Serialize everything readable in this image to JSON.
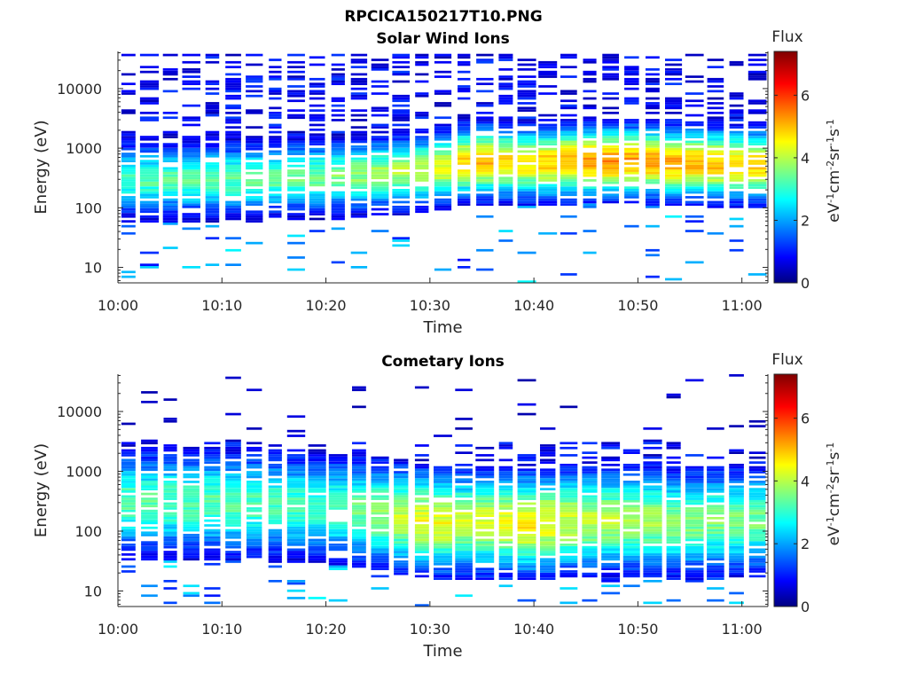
{
  "figure": {
    "title": "RPCICA150217T10.PNG",
    "colormap": "jet",
    "background": "#ffffff"
  },
  "chart_data": [
    {
      "type": "heatmap",
      "title": "Solar Wind Ions",
      "xlabel": "Time",
      "ylabel": "Energy (eV)",
      "x_ticks": [
        "10:00",
        "10:10",
        "10:20",
        "10:30",
        "10:40",
        "10:50",
        "11:00"
      ],
      "x_range_minutes": [
        0,
        62.5
      ],
      "y_scale": "log",
      "y_ticks": [
        "10",
        "100",
        "1000",
        "10000"
      ],
      "y_range": [
        5.5,
        42000
      ],
      "colorbar": {
        "label": "Flux",
        "unit": "eV-1cm-2sr-1s-1",
        "ticks": [
          "0",
          "2",
          "4",
          "6"
        ],
        "range": [
          0,
          7.4
        ]
      },
      "time_bins": 31,
      "energy_bins": 96,
      "mean_flux_by_minute": {
        "minute": [
          0,
          10,
          20,
          30,
          34,
          40,
          44,
          50,
          54,
          60
        ],
        "peak_energy_eV": [
          300,
          300,
          330,
          420,
          600,
          560,
          600,
          600,
          560,
          520
        ],
        "peak_flux": [
          3.3,
          3.4,
          3.6,
          4.2,
          5.2,
          4.8,
          5.4,
          5.4,
          5.2,
          5.0
        ]
      }
    },
    {
      "type": "heatmap",
      "title": "Cometary Ions",
      "xlabel": "Time",
      "ylabel": "Energy (eV)",
      "x_ticks": [
        "10:00",
        "10:10",
        "10:20",
        "10:30",
        "10:40",
        "10:50",
        "11:00"
      ],
      "x_range_minutes": [
        0,
        62.5
      ],
      "y_scale": "log",
      "y_ticks": [
        "10",
        "100",
        "1000",
        "10000"
      ],
      "y_range": [
        5.5,
        42000
      ],
      "colorbar": {
        "label": "Flux",
        "unit": "eV-1cm-2sr-1s-1",
        "ticks": [
          "0",
          "2",
          "4",
          "6"
        ],
        "range": [
          0,
          7.4
        ]
      },
      "time_bins": 31,
      "energy_bins": 96,
      "mean_flux_by_minute": {
        "minute": [
          0,
          10,
          20,
          30,
          34,
          40,
          44,
          50,
          54,
          60
        ],
        "peak_energy_eV": [
          300,
          300,
          250,
          140,
          140,
          130,
          150,
          150,
          140,
          150
        ],
        "peak_flux": [
          3.4,
          3.4,
          3.2,
          4.6,
          4.2,
          4.8,
          4.2,
          4.0,
          3.8,
          3.6
        ]
      }
    }
  ]
}
